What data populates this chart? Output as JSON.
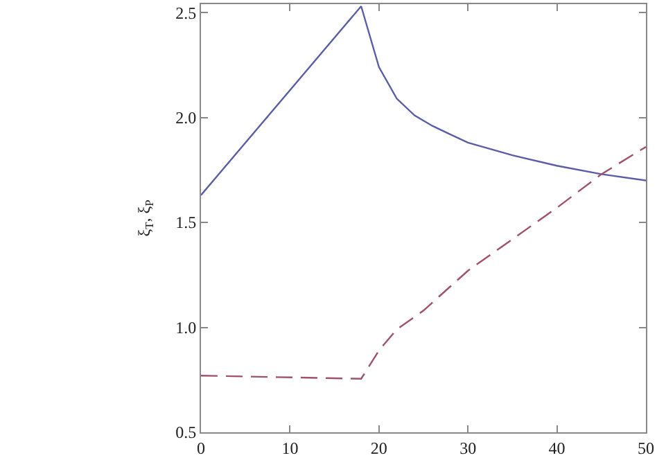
{
  "chart_data": {
    "type": "line",
    "ylabel": "ξ$_{T}$, ξ$_{P}$",
    "xlim": [
      0,
      50
    ],
    "ylim": [
      0.5,
      2.54
    ],
    "xticks": [
      0,
      10,
      20,
      30,
      40,
      50
    ],
    "yticks": [
      {
        "value": 0.5,
        "label": "0.5"
      },
      {
        "value": 1.0,
        "label": "1.0"
      },
      {
        "value": 1.5,
        "label": "1.5"
      },
      {
        "value": 2.0,
        "label": "2.0"
      },
      {
        "value": 2.5,
        "label": "2.5"
      }
    ],
    "legend": false,
    "series": [
      {
        "color": "#5b5ea6",
        "line_style": "solid",
        "x": [
          0,
          18,
          20,
          22,
          24,
          26,
          28,
          30,
          35,
          40,
          45,
          50
        ],
        "values": [
          1.63,
          2.53,
          2.24,
          2.09,
          2.01,
          1.96,
          1.92,
          1.88,
          1.82,
          1.77,
          1.73,
          1.7
        ]
      },
      {
        "color": "#a0526b",
        "line_style": "dashed",
        "x": [
          0,
          18,
          20,
          22,
          25,
          30,
          35,
          40,
          45,
          50
        ],
        "values": [
          0.77,
          0.755,
          0.89,
          0.99,
          1.08,
          1.27,
          1.42,
          1.57,
          1.73,
          1.86
        ]
      }
    ]
  }
}
